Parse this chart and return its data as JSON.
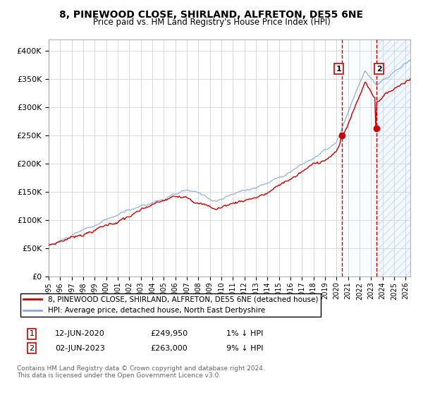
{
  "title": "8, PINEWOOD CLOSE, SHIRLAND, ALFRETON, DE55 6NE",
  "subtitle": "Price paid vs. HM Land Registry's House Price Index (HPI)",
  "legend_line1": "8, PINEWOOD CLOSE, SHIRLAND, ALFRETON, DE55 6NE (detached house)",
  "legend_line2": "HPI: Average price, detached house, North East Derbyshire",
  "annotation1_label": "1",
  "annotation1_date": "12-JUN-2020",
  "annotation1_price": "£249,950",
  "annotation1_hpi": "1% ↓ HPI",
  "annotation2_label": "2",
  "annotation2_date": "02-JUN-2023",
  "annotation2_price": "£263,000",
  "annotation2_hpi": "9% ↓ HPI",
  "footnote": "Contains HM Land Registry data © Crown copyright and database right 2024.\nThis data is licensed under the Open Government Licence v3.0.",
  "hpi_line_color": "#88aadd",
  "price_line_color": "#cc0000",
  "marker_color": "#cc0000",
  "vline_color": "#cc0000",
  "shade_color": "#ddeeff",
  "ylim": [
    0,
    420000
  ],
  "yticks": [
    0,
    50000,
    100000,
    150000,
    200000,
    250000,
    300000,
    350000,
    400000
  ],
  "background_color": "#ffffff",
  "grid_color": "#cccccc",
  "sale1_t": 2020.458,
  "sale1_price": 249950,
  "sale2_t": 2023.458,
  "sale2_price": 263000,
  "xstart": 1995,
  "xend": 2026
}
